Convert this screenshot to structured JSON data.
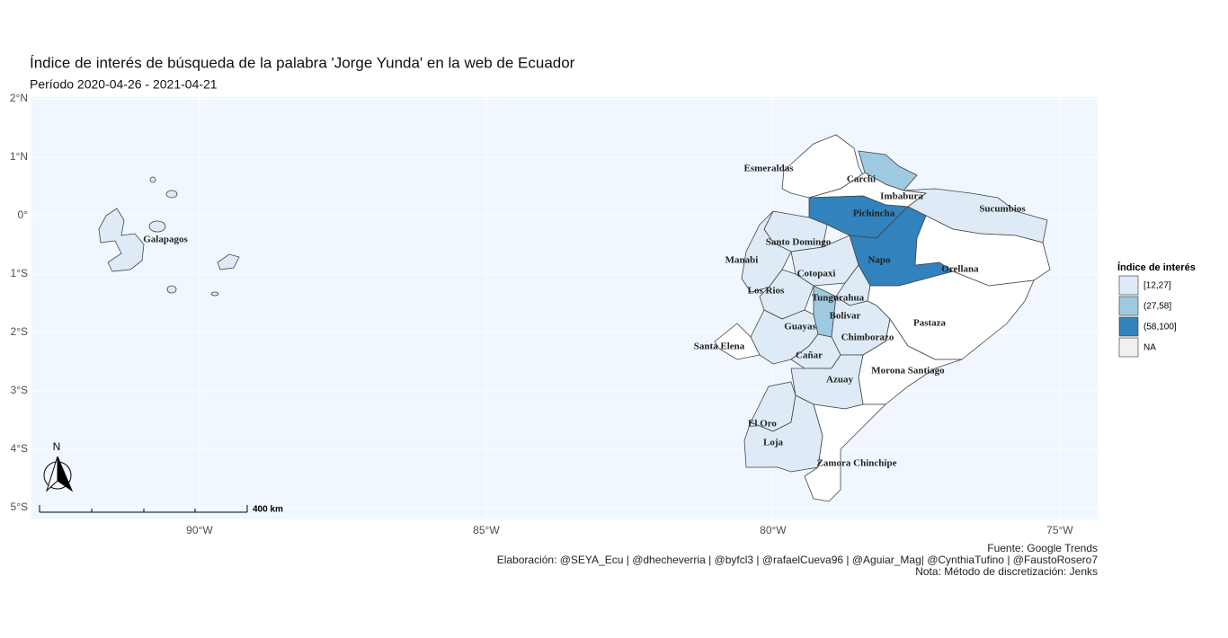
{
  "chart_data": {
    "type": "choropleth",
    "title": "Índice de interés de búsqueda de la palabra 'Jorge Yunda' en la web de Ecuador",
    "subtitle": "Período 2020-04-26 -  2021-04-21",
    "xlim": [
      -92.93,
      -74.34
    ],
    "ylim": [
      -5.2,
      2.03
    ],
    "xticks": [
      {
        "value": -90,
        "label": "90°W"
      },
      {
        "value": -85,
        "label": "85°W"
      },
      {
        "value": -80,
        "label": "80°W"
      },
      {
        "value": -75,
        "label": "75°W"
      }
    ],
    "yticks": [
      {
        "value": 2,
        "label": "2°N"
      },
      {
        "value": 1,
        "label": "1°N"
      },
      {
        "value": 0,
        "label": "0°"
      },
      {
        "value": -1,
        "label": "1°S"
      },
      {
        "value": -2,
        "label": "2°S"
      },
      {
        "value": -3,
        "label": "3°S"
      },
      {
        "value": -4,
        "label": "4°S"
      },
      {
        "value": -5,
        "label": "5°S"
      }
    ],
    "grid": true,
    "provinces": [
      {
        "name": "Esmeraldas",
        "color": "#ffffff"
      },
      {
        "name": "Carchi",
        "color": "#9ecae1"
      },
      {
        "name": "Imbabura",
        "color": "#ffffff"
      },
      {
        "name": "Sucumbios",
        "color": "#deebf7"
      },
      {
        "name": "Pichincha",
        "color": "#3182bd"
      },
      {
        "name": "Galapagos",
        "color": "#deebf7"
      },
      {
        "name": "Santo Domingo",
        "color": "#deebf7"
      },
      {
        "name": "Manabi",
        "color": "#deebf7"
      },
      {
        "name": "Napo",
        "color": "#3182bd"
      },
      {
        "name": "Orellana",
        "color": "#ffffff"
      },
      {
        "name": "Cotopaxi",
        "color": "#deebf7"
      },
      {
        "name": "Los Rios",
        "color": "#deebf7"
      },
      {
        "name": "Tungurahua",
        "color": "#deebf7"
      },
      {
        "name": "Bolivar",
        "color": "#9ecae1"
      },
      {
        "name": "Pastaza",
        "color": "#ffffff"
      },
      {
        "name": "Guayas",
        "color": "#deebf7"
      },
      {
        "name": "Chimborazo",
        "color": "#deebf7"
      },
      {
        "name": "Santa Elena",
        "color": "#ffffff"
      },
      {
        "name": "Cañar",
        "color": "#deebf7"
      },
      {
        "name": "Morona Santiago",
        "color": "#ffffff"
      },
      {
        "name": "Azuay",
        "color": "#deebf7"
      },
      {
        "name": "El Oro",
        "color": "#deebf7"
      },
      {
        "name": "Loja",
        "color": "#deebf7"
      },
      {
        "name": "Zamora Chinchipe",
        "color": "#ffffff"
      }
    ],
    "legend": {
      "title": "Índice de interés",
      "position": "right",
      "items": [
        {
          "label": "[12,27]",
          "color": "#deebf7"
        },
        {
          "label": "(27,58]",
          "color": "#9ecae1"
        },
        {
          "label": "(58,100]",
          "color": "#3182bd"
        },
        {
          "label": "NA",
          "color": "#f0f0f0"
        }
      ]
    },
    "scale_label": "400 km",
    "north_label": "N",
    "caption": [
      "Fuente: Google Trends",
      "Elaboración:  @SEYA_Ecu | @dhecheverria | @byfcl3 | @rafaelCueva96 | @Aguiar_Mag| @CynthiaTufino | @FaustoRosero7",
      "Nota: Método de discretización: Jenks"
    ]
  }
}
